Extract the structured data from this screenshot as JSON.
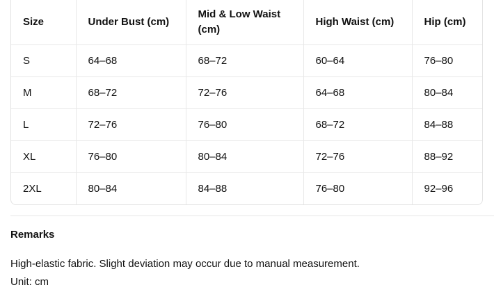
{
  "table": {
    "header": [
      "Size",
      "Under Bust (cm)",
      "Mid & Low Waist (cm)",
      "High Waist (cm)",
      "Hip (cm)"
    ],
    "rows": [
      [
        "S",
        "64–68",
        "68–72",
        "60–64",
        "76–80"
      ],
      [
        "M",
        "68–72",
        "72–76",
        "64–68",
        "80–84"
      ],
      [
        "L",
        "72–76",
        "76–80",
        "68–72",
        "84–88"
      ],
      [
        "XL",
        "76–80",
        "80–84",
        "72–76",
        "88–92"
      ],
      [
        "2XL",
        "80–84",
        "84–88",
        "76–80",
        "92–96"
      ]
    ]
  },
  "remarks": {
    "title": "Remarks",
    "lines": [
      "High-elastic fabric. Slight deviation may occur due to manual measurement.",
      "Unit: cm"
    ]
  }
}
